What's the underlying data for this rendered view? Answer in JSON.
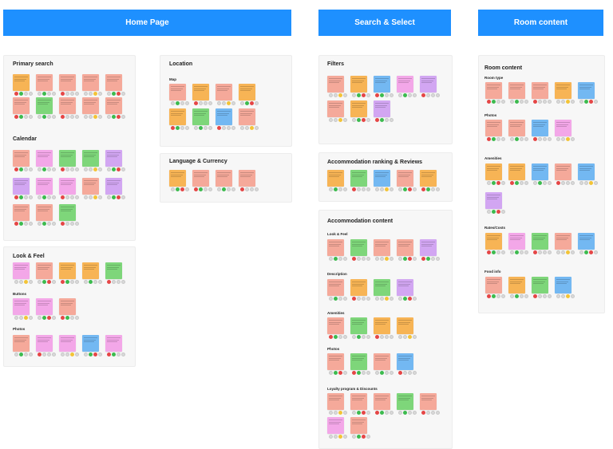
{
  "banners": {
    "home": "Home Page",
    "search": "Search & Select",
    "room": "Room content"
  },
  "panels": {
    "primary_search": "Primary search",
    "calendar": "Calendar",
    "look_feel": "Look & Feel",
    "buttons": "Buttons",
    "photos_home": "Photos",
    "location": "Location",
    "map": "Map",
    "language_currency": "Language & Currency",
    "filters": "Filters",
    "ranking_reviews": "Accommodation ranking & Reviews",
    "accommodation_content": "Accommodation content",
    "acc_look_feel": "Look & Feel",
    "acc_description": "Description",
    "acc_amenities": "Amenities",
    "acc_photos": "Photos",
    "acc_loyalty": "Loyalty program & Discounts",
    "room_content": "Room content",
    "room_type": "Room type",
    "room_photos": "Photos",
    "room_amenities": "Amenities",
    "room_rates": "Rates/Costs",
    "room_food": "Food info"
  },
  "colors": {
    "banner": "#1e90ff",
    "orange": "#f7b455",
    "salmon": "#f5a99a",
    "pink": "#f3a7e8",
    "green": "#7ed67a",
    "blue": "#73b8f2",
    "purple": "#d2a6f2"
  }
}
